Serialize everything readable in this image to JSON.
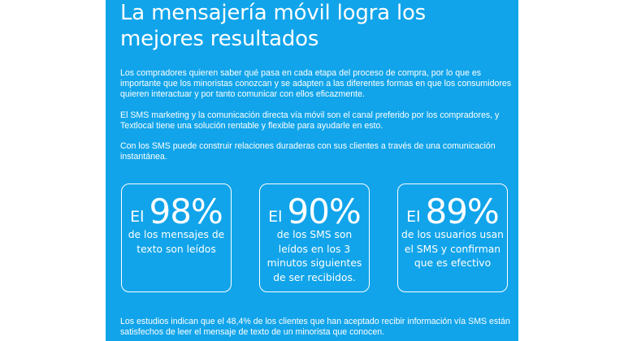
{
  "title": "La mensajería móvil logra los mejores resultados",
  "paragraphs": {
    "intro": "Los compradores quieren saber qué pasa en cada etapa del proceso de compra, por lo que es importante que los minoristas conozcan y se adapten a las diferentes formas en que los consumidores quieren interactuar y por tanto comunicar con ellos eficazmente.",
    "preferred": "El SMS marketing y la comunicación directa vía móvil son el canal preferido por los compradores, y Textlocal tiene una solución rentable y flexible para ayudarle en esto.",
    "relations": "Con los SMS puede construir relaciones duraderas con sus clientes a través de una comunicación instantánea."
  },
  "stats": [
    {
      "prefix": "El",
      "value": "98%",
      "description": "de los mensajes de texto son leídos"
    },
    {
      "prefix": "El",
      "value": "90%",
      "description": "de los SMS son leídos en los 3 minutos siguientes de ser recibidos."
    },
    {
      "prefix": "El",
      "value": "89%",
      "description": "de los usuarios usan el SMS y confirman que es efectivo"
    }
  ],
  "footer": "Los estudios indican que el 48,4% de los clientes que han aceptado recibir información vía SMS están satisfechos de leer el mensaje de texto de un minorista que conocen.",
  "colors": {
    "panel_background": "#11a4ea",
    "text": "#ffffff",
    "side_background": "#ffffff"
  }
}
